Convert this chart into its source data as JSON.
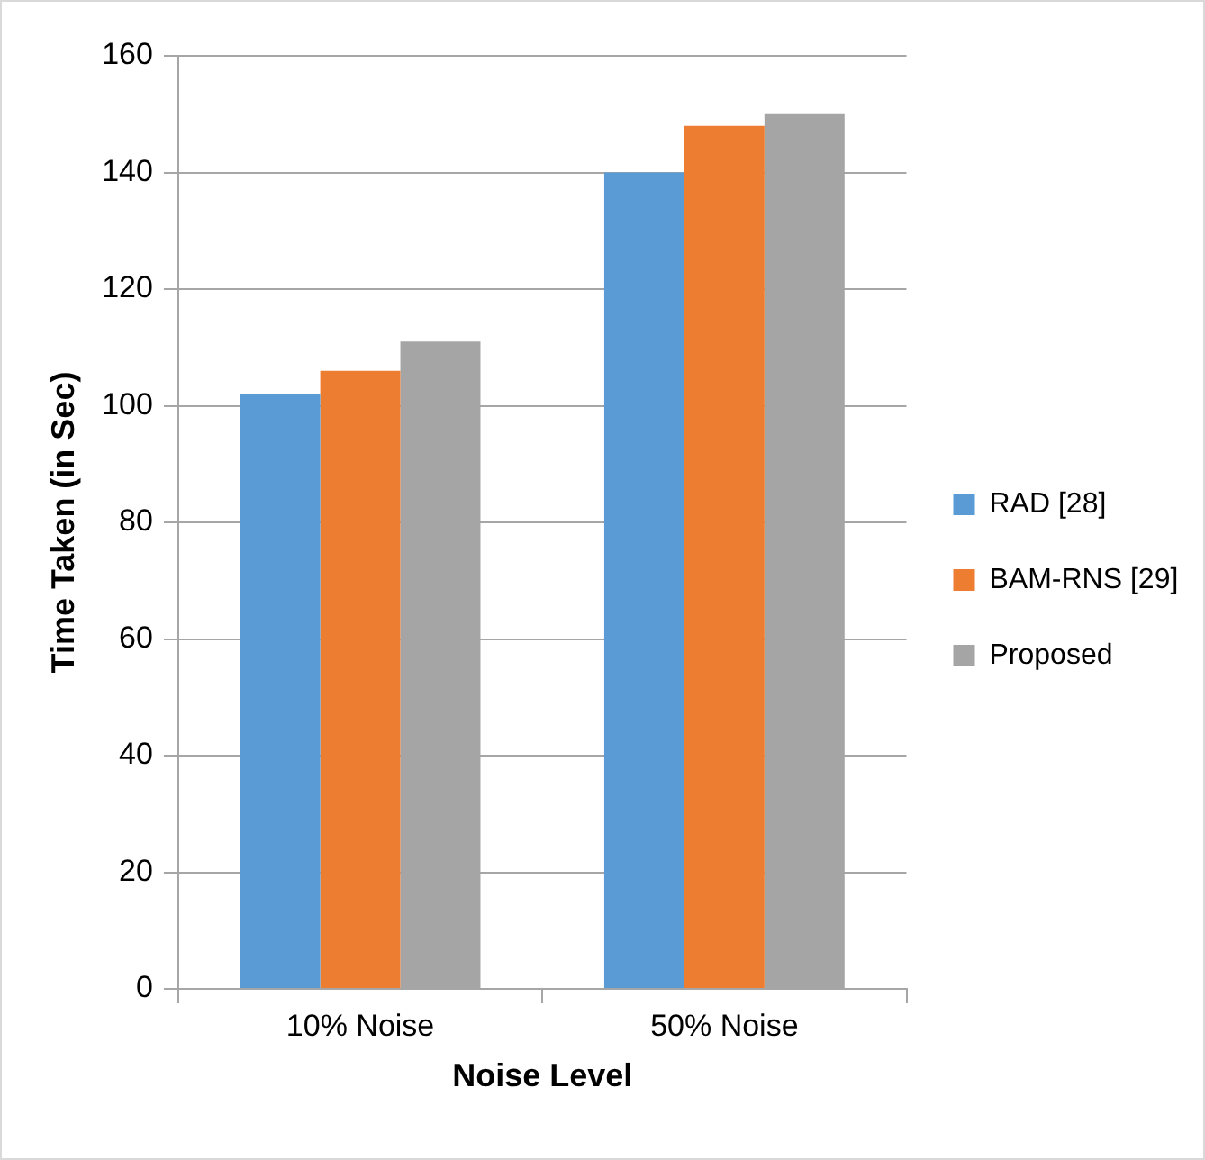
{
  "chart_data": {
    "type": "bar",
    "xlabel": "Noise Level",
    "ylabel": "Time Taken (in Sec)",
    "categories": [
      "10% Noise",
      "50% Noise"
    ],
    "series": [
      {
        "name": "RAD [28]",
        "color": "#5b9bd5",
        "values": [
          102,
          140
        ]
      },
      {
        "name": "BAM-RNS [29]",
        "color": "#ed7d31",
        "values": [
          106,
          148
        ]
      },
      {
        "name": "Proposed",
        "color": "#a5a5a5",
        "values": [
          111,
          150
        ]
      }
    ],
    "ylim": [
      0,
      160
    ],
    "yticks": [
      0,
      20,
      40,
      60,
      80,
      100,
      120,
      140,
      160
    ],
    "grid": "y",
    "legend": "right"
  }
}
